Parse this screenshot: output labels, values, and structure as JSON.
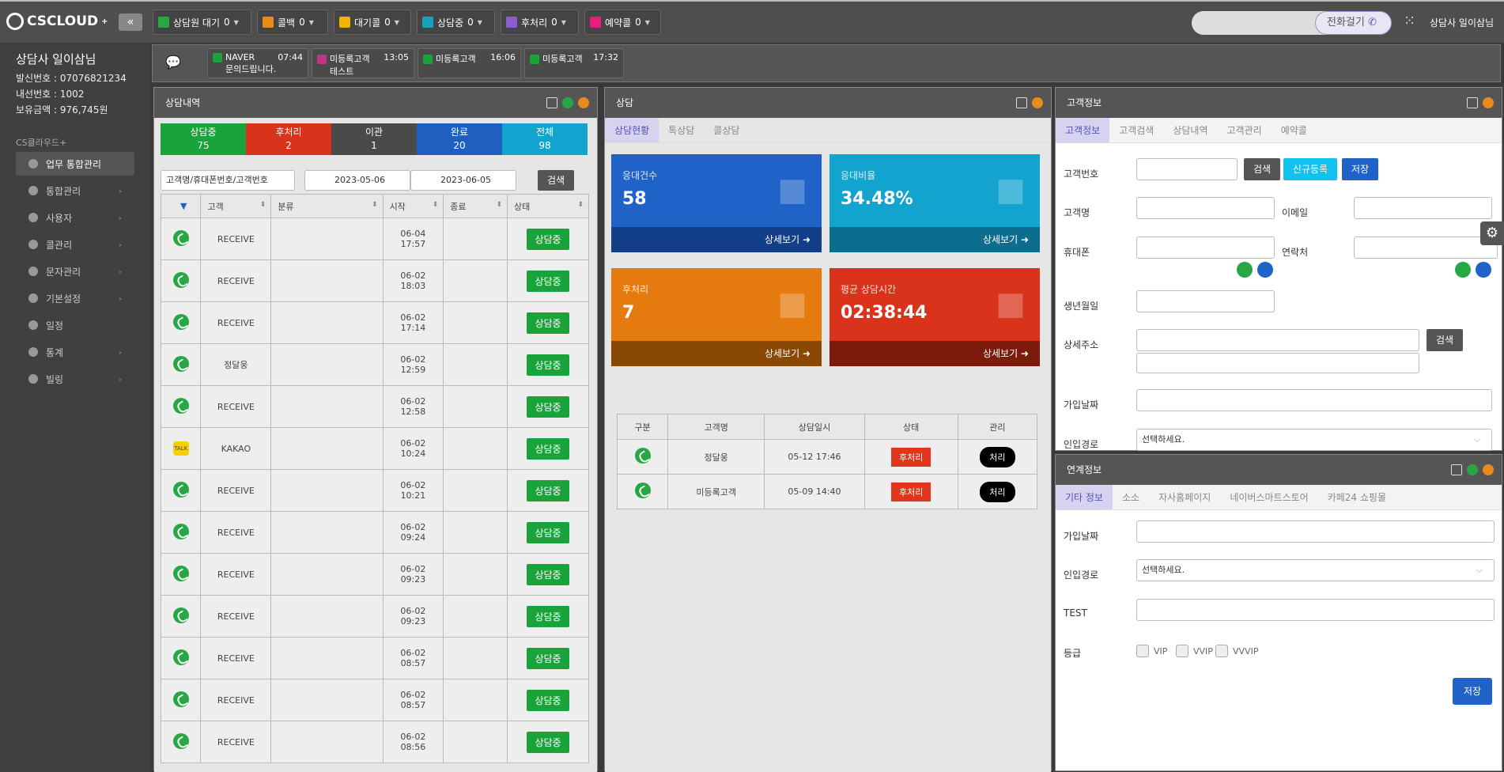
{
  "app": {
    "logo": "CSCLOUD",
    "logo_sup": "+",
    "collapse": "«"
  },
  "status_bar": [
    {
      "label": "상담원 대기",
      "count": "0",
      "color": "#28a745"
    },
    {
      "label": "콜백",
      "count": "0",
      "color": "#e88b1b"
    },
    {
      "label": "대기콜",
      "count": "0",
      "color": "#f0b400"
    },
    {
      "label": "상담중",
      "count": "0",
      "color": "#17a2b8"
    },
    {
      "label": "후처리",
      "count": "0",
      "color": "#8e5bd0"
    },
    {
      "label": "예약콜",
      "count": "0",
      "color": "#e6207a"
    }
  ],
  "header": {
    "call_button": "전화걸기",
    "agent_name": "상담사 일이삼님"
  },
  "sidebar": {
    "user_name": "상담사 일이삼님",
    "info": [
      "발신번호 : 07076821234",
      "내선번호 : 1002",
      "보유금액 : 976,745원"
    ],
    "section": "CS클라우드+",
    "items": [
      {
        "label": "업무 통합관리",
        "icon": "headset-icon",
        "arrow": ""
      },
      {
        "label": "통합관리",
        "icon": "gear-icon",
        "arrow": "›"
      },
      {
        "label": "사용자",
        "icon": "users-icon",
        "arrow": "›"
      },
      {
        "label": "콜관리",
        "icon": "phone-icon",
        "arrow": "›"
      },
      {
        "label": "문자관리",
        "icon": "chat-icon",
        "arrow": "›"
      },
      {
        "label": "기본설정",
        "icon": "cog-icon",
        "arrow": "›"
      },
      {
        "label": "일정",
        "icon": "calendar-icon",
        "arrow": ""
      },
      {
        "label": "통계",
        "icon": "bar-chart-icon",
        "arrow": "›"
      },
      {
        "label": "빌링",
        "icon": "card-icon",
        "arrow": "›"
      }
    ]
  },
  "notifications": [
    {
      "source": "NAVER",
      "time": "07:44",
      "text": "문의드립니다.",
      "color": "#1aa33a"
    },
    {
      "source": "미등록고객",
      "time": "13:05",
      "text": "테스트",
      "color": "#c13584"
    },
    {
      "source": "미등록고객",
      "time": "16:06",
      "text": "",
      "color": "#1aa33a"
    },
    {
      "source": "미등록고객",
      "time": "17:32",
      "text": "",
      "color": "#1aa33a"
    }
  ],
  "history": {
    "title": "상담내역",
    "stats": [
      {
        "label": "상담중",
        "value": "75",
        "color": "#1aa33a"
      },
      {
        "label": "후처리",
        "value": "2",
        "color": "#d9331b"
      },
      {
        "label": "이관",
        "value": "1",
        "color": "#4a4a4a"
      },
      {
        "label": "완료",
        "value": "20",
        "color": "#1f5fc0"
      },
      {
        "label": "전체",
        "value": "98",
        "color": "#12a3cf"
      }
    ],
    "search_placeholder": "고객명/휴대폰번호/고객번호",
    "date_from": "2023-05-06",
    "date_to": "2023-06-05",
    "search_btn": "검색",
    "columns": [
      "",
      "고객",
      "분류",
      "시작",
      "종료",
      "상태"
    ],
    "rows": [
      {
        "type": "phone",
        "customer": "RECEIVE",
        "date": "06-04",
        "time": "17:57",
        "status": "상담중"
      },
      {
        "type": "phone",
        "customer": "RECEIVE",
        "date": "06-02",
        "time": "18:03",
        "status": "상담중"
      },
      {
        "type": "phone",
        "customer": "RECEIVE",
        "date": "06-02",
        "time": "17:14",
        "status": "상담중"
      },
      {
        "type": "phone",
        "customer": "정달웅",
        "date": "06-02",
        "time": "12:59",
        "status": "상담중"
      },
      {
        "type": "phone",
        "customer": "RECEIVE",
        "date": "06-02",
        "time": "12:58",
        "status": "상담중"
      },
      {
        "type": "kakao",
        "customer": "KAKAO",
        "date": "06-02",
        "time": "10:24",
        "status": "상담중"
      },
      {
        "type": "phone",
        "customer": "RECEIVE",
        "date": "06-02",
        "time": "10:21",
        "status": "상담중"
      },
      {
        "type": "phone",
        "customer": "RECEIVE",
        "date": "06-02",
        "time": "09:24",
        "status": "상담중"
      },
      {
        "type": "phone",
        "customer": "RECEIVE",
        "date": "06-02",
        "time": "09:23",
        "status": "상담중"
      },
      {
        "type": "phone",
        "customer": "RECEIVE",
        "date": "06-02",
        "time": "09:23",
        "status": "상담중"
      },
      {
        "type": "phone",
        "customer": "RECEIVE",
        "date": "06-02",
        "time": "08:57",
        "status": "상담중"
      },
      {
        "type": "phone",
        "customer": "RECEIVE",
        "date": "06-02",
        "time": "08:57",
        "status": "상담중"
      },
      {
        "type": "phone",
        "customer": "RECEIVE",
        "date": "06-02",
        "time": "08:56",
        "status": "상담중"
      }
    ]
  },
  "consult": {
    "title": "상담",
    "tabs": [
      "상담현황",
      "톡상담",
      "콜상담"
    ],
    "cards": [
      {
        "label": "응대건수",
        "value": "58",
        "more": "상세보기",
        "color": "#1f63c9",
        "foot": "#123f88",
        "icon": "monitor-icon"
      },
      {
        "label": "응대비율",
        "value": "34.48%",
        "more": "상세보기",
        "color": "#13a3cf",
        "foot": "#0b6e8e",
        "icon": "link-icon"
      },
      {
        "label": "후처리",
        "value": "7",
        "more": "상세보기",
        "color": "#e57b0f",
        "foot": "#8a4807",
        "icon": "users-icon"
      },
      {
        "label": "평균 상담시간",
        "value": "02:38:44",
        "more": "상세보기",
        "color": "#d9331b",
        "foot": "#7c1a0c",
        "icon": "clock-icon"
      }
    ],
    "columns": [
      "구분",
      "고객명",
      "상담일시",
      "상태",
      "관리"
    ],
    "rows": [
      {
        "name": "정달웅",
        "datetime": "05-12 17:46",
        "status": "후처리",
        "action": "처리"
      },
      {
        "name": "미등록고객",
        "datetime": "05-09 14:40",
        "status": "후처리",
        "action": "처리"
      }
    ]
  },
  "customer": {
    "title": "고객정보",
    "tabs": [
      "고객정보",
      "고객검색",
      "상담내역",
      "고객관리",
      "예약콜"
    ],
    "labels": {
      "id": "고객번호",
      "name": "고객명",
      "email": "이메일",
      "mobile": "휴대폰",
      "contact": "연락처",
      "birth": "생년월일",
      "address": "상세주소",
      "join": "가입날짜",
      "route": "인입경로"
    },
    "buttons": {
      "search": "검색",
      "register": "신규등록",
      "save": "저장",
      "addr_search": "검색"
    },
    "route_placeholder": "선택하세요."
  },
  "link": {
    "title": "연계정보",
    "tabs": [
      "기타 정보",
      "소소",
      "자사홈페이지",
      "네이버스마트스토어",
      "카페24 쇼핑몰"
    ],
    "labels": {
      "join": "가입날짜",
      "route": "인입경로",
      "test": "TEST",
      "grade": "등급"
    },
    "route_placeholder": "선택하세요.",
    "grades": [
      "VIP",
      "VVIP",
      "VVVIP"
    ],
    "save": "저장"
  }
}
